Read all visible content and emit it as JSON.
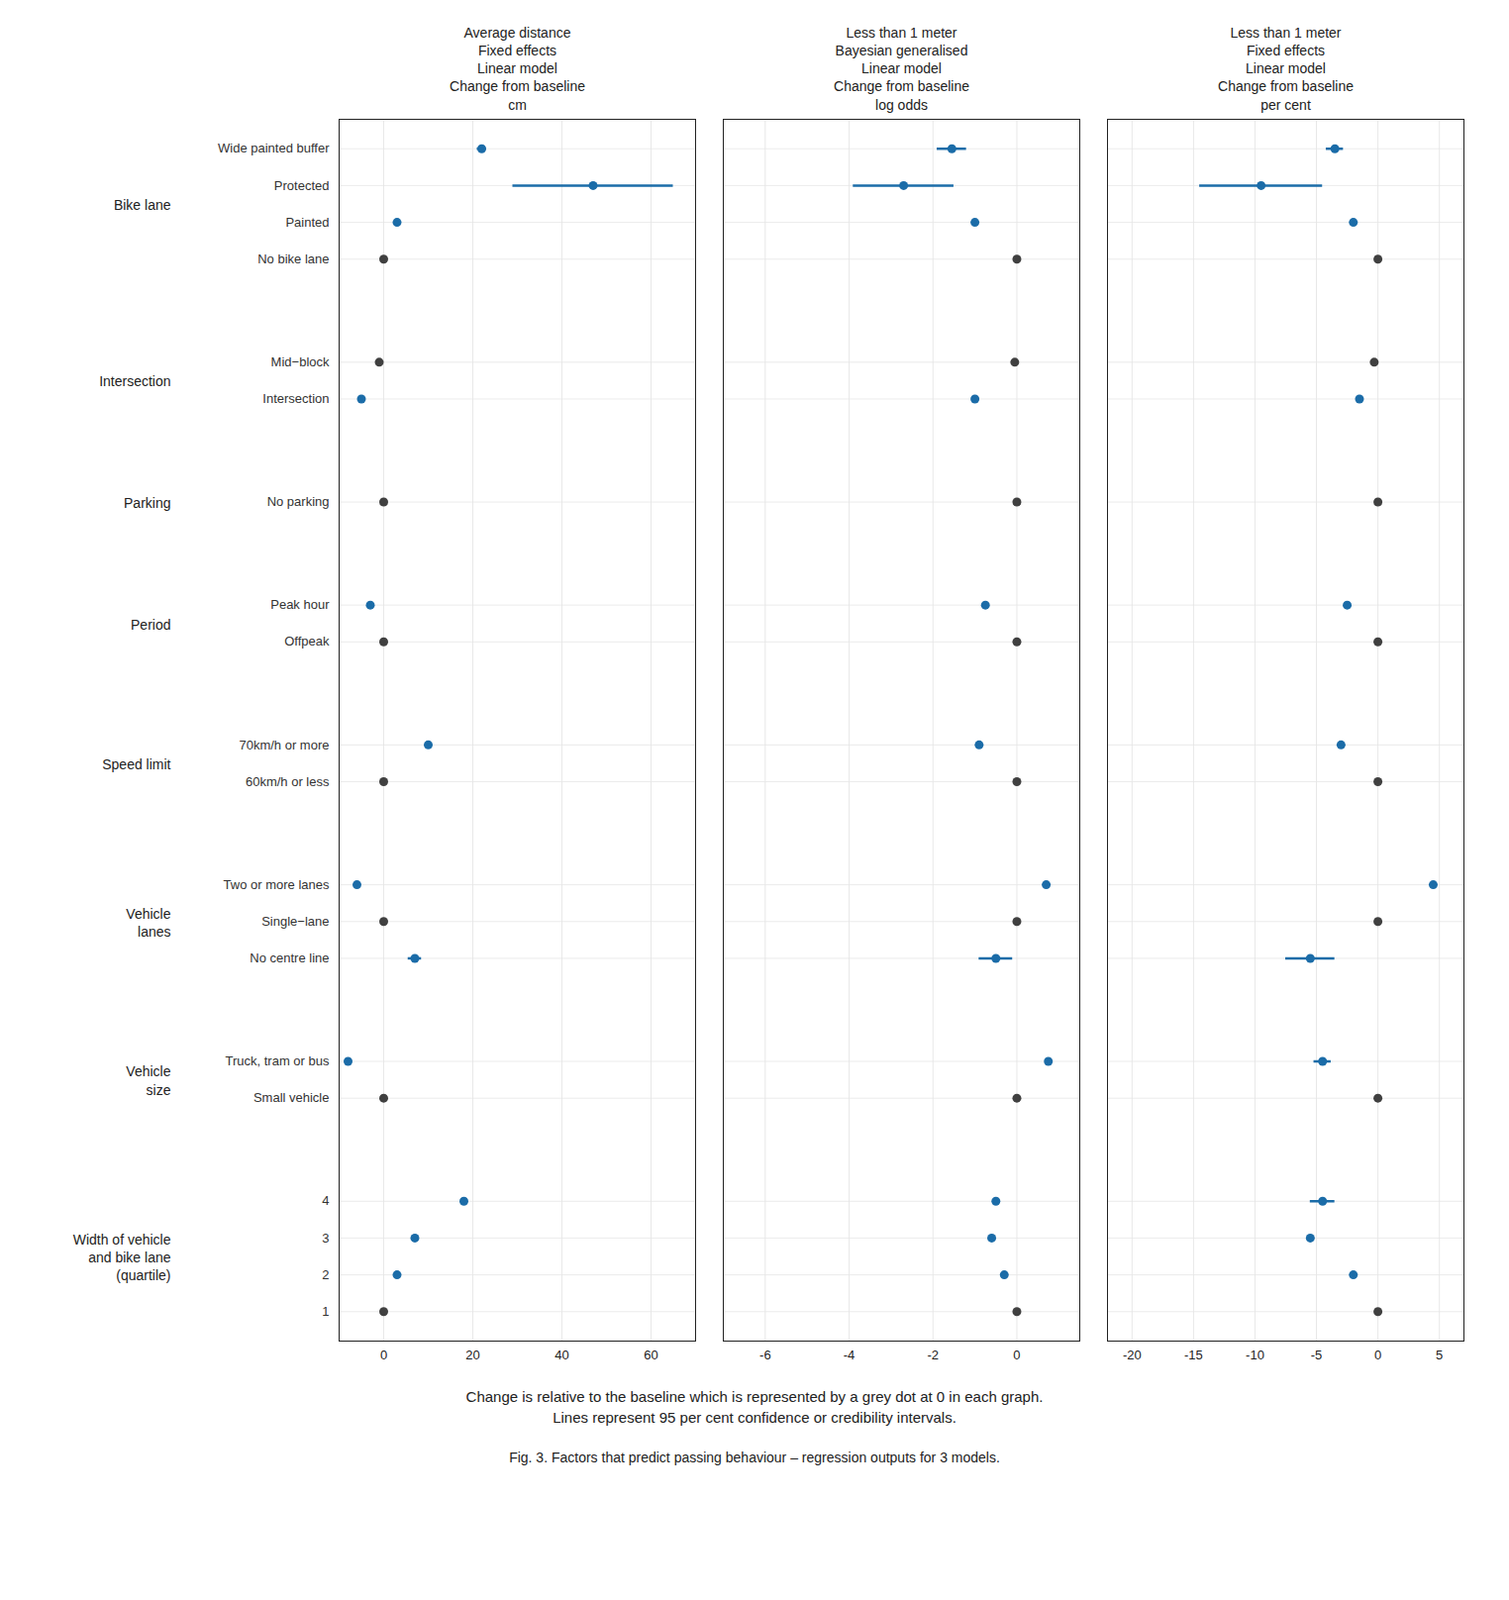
{
  "chart_data": [
    {
      "type": "forest",
      "xlabel": "Average distance\nFixed effects\nLinear model\nChange from baseline\ncm",
      "categories": [
        "Wide painted buffer",
        "Protected",
        "Painted",
        "No bike lane",
        "Mid−block",
        "Intersection",
        "No parking",
        "Peak hour",
        "Offpeak",
        "70km/h or more",
        "60km/h or less",
        "Two or more lanes",
        "Single−lane",
        "No centre line",
        "Truck, tram or bus",
        "Small vehicle",
        "4",
        "3",
        "2",
        "1"
      ],
      "groups": [
        "Bike lane",
        "Bike lane",
        "Bike lane",
        "Bike lane",
        "Intersection",
        "Intersection",
        "Parking",
        "Period",
        "Period",
        "Speed limit",
        "Speed limit",
        "Vehicle\nlanes",
        "Vehicle\nlanes",
        "Vehicle\nlanes",
        "Vehicle\nsize",
        "Vehicle\nsize",
        "Width of vehicle\nand bike lane\n(quartile)",
        "Width of vehicle\nand bike lane\n(quartile)",
        "Width of vehicle\nand bike lane\n(quartile)",
        "Width of vehicle\nand bike lane\n(quartile)"
      ],
      "values": [
        22,
        47,
        3,
        0,
        -1,
        -5,
        0,
        -3,
        0,
        10,
        0,
        -6,
        0,
        7,
        -8,
        0,
        18,
        7,
        3,
        0
      ],
      "lo": [
        21.0,
        29,
        3,
        0,
        -1,
        -5,
        0,
        -3,
        0,
        10,
        0,
        -6,
        0,
        5.5,
        -8,
        0,
        18,
        7,
        3,
        0
      ],
      "hi": [
        23.0,
        65,
        3,
        0,
        -1,
        -5,
        0,
        -3,
        0,
        10,
        0,
        -6,
        0,
        8.5,
        -8,
        0,
        18,
        7,
        3,
        0
      ],
      "colors": [
        "#1B6CA8",
        "#1B6CA8",
        "#1B6CA8",
        "#404040",
        "#404040",
        "#1B6CA8",
        "#404040",
        "#1B6CA8",
        "#404040",
        "#1B6CA8",
        "#404040",
        "#1B6CA8",
        "#404040",
        "#1B6CA8",
        "#1B6CA8",
        "#404040",
        "#1B6CA8",
        "#1B6CA8",
        "#1B6CA8",
        "#404040"
      ],
      "xlim": [
        -10,
        70
      ],
      "xticks": [
        0,
        20,
        40,
        60
      ],
      "grid": true,
      "annotations": [
        "Change is relative to the baseline which is represented by a grey dot at 0 in each graph.\nLines represent 95 per cent confidence or credibility intervals.",
        "Fig. 3.  Factors that predict passing behaviour – regression outputs for 3 models."
      ]
    },
    {
      "type": "forest",
      "xlabel": "Less than 1 meter\nBayesian generalised\nLinear model\nChange from baseline\nlog odds",
      "categories": [
        "Wide painted buffer",
        "Protected",
        "Painted",
        "No bike lane",
        "Mid−block",
        "Intersection",
        "No parking",
        "Peak hour",
        "Offpeak",
        "70km/h or more",
        "60km/h or less",
        "Two or more lanes",
        "Single−lane",
        "No centre line",
        "Truck, tram or bus",
        "Small vehicle",
        "4",
        "3",
        "2",
        "1"
      ],
      "groups": [
        "Bike lane",
        "Bike lane",
        "Bike lane",
        "Bike lane",
        "Intersection",
        "Intersection",
        "Parking",
        "Period",
        "Period",
        "Speed limit",
        "Speed limit",
        "Vehicle\nlanes",
        "Vehicle\nlanes",
        "Vehicle\nlanes",
        "Vehicle\nsize",
        "Vehicle\nsize",
        "Width of vehicle\nand bike lane\n(quartile)",
        "Width of vehicle\nand bike lane\n(quartile)",
        "Width of vehicle\nand bike lane\n(quartile)",
        "Width of vehicle\nand bike lane\n(quartile)"
      ],
      "values": [
        -1.55,
        -2.7,
        -1.0,
        0,
        -0.05,
        -1.0,
        0,
        -0.75,
        0,
        -0.9,
        0,
        0.7,
        0,
        -0.5,
        0.75,
        0,
        -0.5,
        -0.6,
        -0.3,
        0
      ],
      "lo": [
        -1.9,
        -3.9,
        -1.0,
        0,
        -0.05,
        -1.0,
        0,
        -0.75,
        0,
        -0.9,
        0,
        0.7,
        0,
        -0.9,
        0.75,
        0,
        -0.5,
        -0.6,
        -0.3,
        0
      ],
      "hi": [
        -1.2,
        -1.5,
        -1.0,
        0,
        -0.05,
        -1.0,
        0,
        -0.75,
        0,
        -0.9,
        0,
        0.7,
        0,
        -0.1,
        0.75,
        0,
        -0.5,
        -0.6,
        -0.3,
        0
      ],
      "colors": [
        "#1B6CA8",
        "#1B6CA8",
        "#1B6CA8",
        "#404040",
        "#404040",
        "#1B6CA8",
        "#404040",
        "#1B6CA8",
        "#404040",
        "#1B6CA8",
        "#404040",
        "#1B6CA8",
        "#404040",
        "#1B6CA8",
        "#1B6CA8",
        "#404040",
        "#1B6CA8",
        "#1B6CA8",
        "#1B6CA8",
        "#404040"
      ],
      "xlim": [
        -7,
        1.5
      ],
      "xticks": [
        -6,
        -4,
        -2,
        0
      ],
      "grid": true
    },
    {
      "type": "forest",
      "xlabel": "Less than 1 meter\nFixed effects\nLinear model\nChange from baseline\nper cent",
      "categories": [
        "Wide painted buffer",
        "Protected",
        "Painted",
        "No bike lane",
        "Mid−block",
        "Intersection",
        "No parking",
        "Peak hour",
        "Offpeak",
        "70km/h or more",
        "60km/h or less",
        "Two or more lanes",
        "Single−lane",
        "No centre line",
        "Truck, tram or bus",
        "Small vehicle",
        "4",
        "3",
        "2",
        "1"
      ],
      "groups": [
        "Bike lane",
        "Bike lane",
        "Bike lane",
        "Bike lane",
        "Intersection",
        "Intersection",
        "Parking",
        "Period",
        "Period",
        "Speed limit",
        "Speed limit",
        "Vehicle\nlanes",
        "Vehicle\nlanes",
        "Vehicle\nlanes",
        "Vehicle\nsize",
        "Vehicle\nsize",
        "Width of vehicle\nand bike lane\n(quartile)",
        "Width of vehicle\nand bike lane\n(quartile)",
        "Width of vehicle\nand bike lane\n(quartile)",
        "Width of vehicle\nand bike lane\n(quartile)"
      ],
      "values": [
        -3.5,
        -9.5,
        -2.0,
        0,
        -0.3,
        -1.5,
        0,
        -2.5,
        0,
        -3.0,
        0,
        4.5,
        0,
        -5.5,
        -4.5,
        0,
        -4.5,
        -5.5,
        -2.0,
        0
      ],
      "lo": [
        -4.2,
        -14.5,
        -2.0,
        0,
        -0.3,
        -1.5,
        0,
        -2.5,
        0,
        -3.0,
        0,
        4.5,
        0,
        -7.5,
        -5.2,
        0,
        -5.5,
        -5.5,
        -2.0,
        0
      ],
      "hi": [
        -2.8,
        -4.5,
        -2.0,
        0,
        -0.3,
        -1.5,
        0,
        -2.5,
        0,
        -3.0,
        0,
        4.5,
        0,
        -3.5,
        -3.8,
        0,
        -3.5,
        -5.5,
        -2.0,
        0
      ],
      "colors": [
        "#1B6CA8",
        "#1B6CA8",
        "#1B6CA8",
        "#404040",
        "#404040",
        "#1B6CA8",
        "#404040",
        "#1B6CA8",
        "#404040",
        "#1B6CA8",
        "#404040",
        "#1B6CA8",
        "#404040",
        "#1B6CA8",
        "#1B6CA8",
        "#404040",
        "#1B6CA8",
        "#1B6CA8",
        "#1B6CA8",
        "#404040"
      ],
      "xlim": [
        -22,
        7
      ],
      "xticks": [
        -20,
        -15,
        -10,
        -5,
        0,
        5
      ],
      "grid": true
    }
  ]
}
